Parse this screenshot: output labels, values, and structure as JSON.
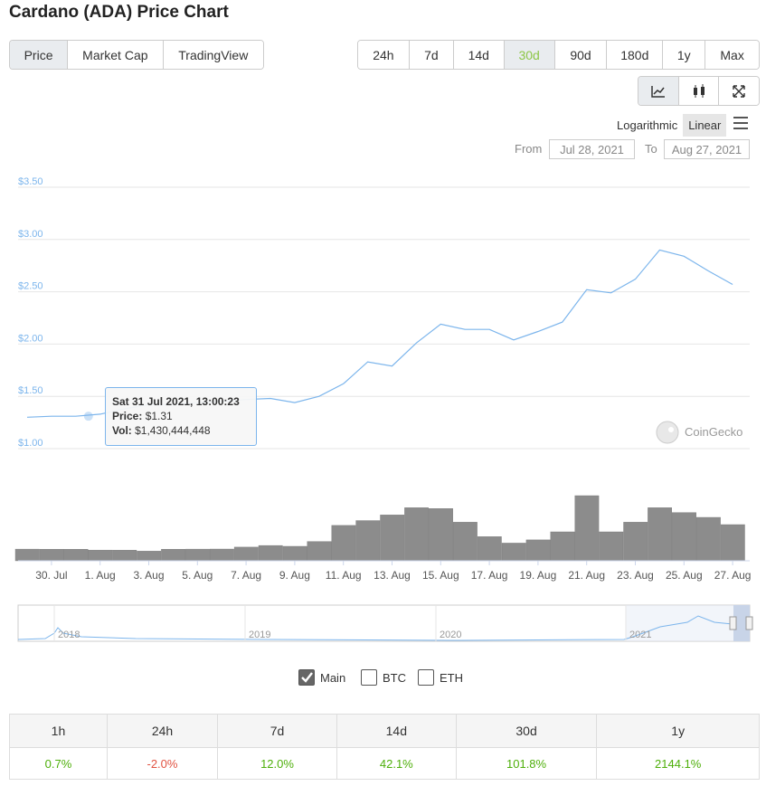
{
  "header": {
    "title": "Cardano (ADA) Price Chart"
  },
  "tabs": {
    "items": [
      "Price",
      "Market Cap",
      "TradingView"
    ],
    "active": 0
  },
  "ranges": {
    "items": [
      "24h",
      "7d",
      "14d",
      "30d",
      "90d",
      "180d",
      "1y",
      "Max"
    ],
    "active": 3
  },
  "scale": {
    "items": [
      "Logarithmic",
      "Linear"
    ],
    "active": 1
  },
  "date_range": {
    "from_label": "From",
    "from": "Jul 28, 2021",
    "to_label": "To",
    "to": "Aug 27, 2021"
  },
  "chart_data": {
    "type": "line",
    "categories": [
      null,
      "30. Jul",
      null,
      "1. Aug",
      null,
      "3. Aug",
      null,
      "5. Aug",
      null,
      "7. Aug",
      null,
      "9. Aug",
      null,
      "11. Aug",
      null,
      "13. Aug",
      null,
      "15. Aug",
      null,
      "17. Aug",
      null,
      "19. Aug",
      null,
      "21. Aug",
      null,
      "23. Aug",
      null,
      "25. Aug",
      null,
      "27. Aug"
    ],
    "series": [
      {
        "name": "Price",
        "color": "#7cb5ec",
        "values": [
          1.3,
          1.31,
          1.31,
          1.33,
          1.38,
          1.42,
          1.42,
          1.44,
          1.45,
          1.47,
          1.48,
          1.44,
          1.5,
          1.62,
          1.83,
          1.79,
          2.01,
          2.19,
          2.14,
          2.14,
          2.04,
          2.12,
          2.21,
          2.52,
          2.49,
          2.62,
          2.9,
          2.84,
          2.7,
          2.57
        ]
      },
      {
        "name": "Vol",
        "color": "#8c8c8c",
        "values": [
          1450000000,
          1440000000,
          1430444448,
          1330000000,
          1320000000,
          1200000000,
          1440000000,
          1450000000,
          1460000000,
          1700000000,
          1900000000,
          1800000000,
          2400000000,
          4400000000,
          5000000000,
          5700000000,
          6600000000,
          6500000000,
          4800000000,
          3000000000,
          2200000000,
          2600000000,
          3600000000,
          8100000000,
          3600000000,
          4800000000,
          6600000000,
          6000000000,
          5400000000,
          4500000000
        ]
      }
    ],
    "ylim": [
      1.0,
      3.5
    ],
    "yticks": [
      {
        "value": 1.0,
        "label": "$1.00"
      },
      {
        "value": 1.5,
        "label": "$1.50"
      },
      {
        "value": 2.0,
        "label": "$2.00"
      },
      {
        "value": 2.5,
        "label": "$2.50"
      },
      {
        "value": 3.0,
        "label": "$3.00"
      },
      {
        "value": 3.5,
        "label": "$3.50"
      }
    ],
    "grid": true
  },
  "tooltip": {
    "title": "Sat 31 Jul 2021, 13:00:23",
    "price_label": "Price:",
    "price": "$1.31",
    "vol_label": "Vol:",
    "vol": "$1,430,444,448"
  },
  "watermark": "CoinGecko",
  "navigator": {
    "years": [
      "2018",
      "2019",
      "2020",
      "2021"
    ]
  },
  "compare": {
    "items": [
      {
        "label": "Main",
        "checked": true
      },
      {
        "label": "BTC",
        "checked": false
      },
      {
        "label": "ETH",
        "checked": false
      }
    ]
  },
  "table": {
    "headers": [
      "1h",
      "24h",
      "7d",
      "14d",
      "30d",
      "1y"
    ],
    "rows": [
      [
        "0.7%",
        "-2.0%",
        "12.0%",
        "42.1%",
        "101.8%",
        "2144.1%"
      ]
    ]
  }
}
